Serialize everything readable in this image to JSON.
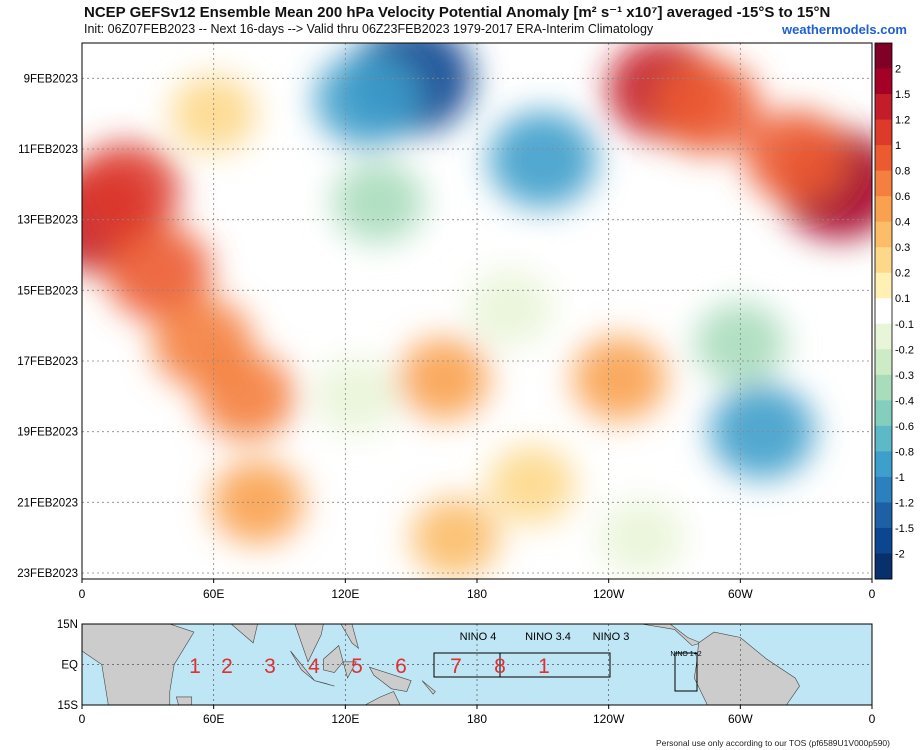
{
  "header": {
    "title": "NCEP GEFSv12 Ensemble Mean 200 hPa Velocity Potential Anomaly [m² s⁻¹ x10⁷] averaged -15°S to 15°N",
    "subtitle": "Init: 06Z07FEB2023 -- Next 16-days --> Valid thru 06Z23FEB2023 1979-2017 ERA-Interim Climatology",
    "brand": "weathermodels.com"
  },
  "footer": {
    "text": "Personal use only according to our TOS (pf6589U1V000p590)"
  },
  "colors": {
    "strong_negative": "#08519c",
    "negative": "#4eb3d3",
    "weak_negative": "#a8ddb5",
    "neutral": "#ffffff",
    "weak_positive": "#ffeda0",
    "positive": "#fd8d3c",
    "strong_positive": "#bd0026"
  },
  "chart_data": {
    "type": "heatmap",
    "title": "NCEP GEFSv12 Ensemble Mean 200 hPa Velocity Potential Anomaly [m² s⁻¹ x10⁷] averaged -15°S to 15°N",
    "xlabel": "",
    "ylabel": "",
    "x_ticks": [
      {
        "lon": 0,
        "label": "0"
      },
      {
        "lon": 60,
        "label": "60E"
      },
      {
        "lon": 120,
        "label": "120E"
      },
      {
        "lon": 180,
        "label": "180"
      },
      {
        "lon": 240,
        "label": "120W"
      },
      {
        "lon": 300,
        "label": "60W"
      },
      {
        "lon": 360,
        "label": "0"
      }
    ],
    "xlim": [
      0,
      360
    ],
    "y_start": "7FEB2023",
    "y_days_range": [
      1.0,
      16.0
    ],
    "y_ticks": [
      {
        "day": 2,
        "label": "9FEB2023"
      },
      {
        "day": 4,
        "label": "11FEB2023"
      },
      {
        "day": 6,
        "label": "13FEB2023"
      },
      {
        "day": 8,
        "label": "15FEB2023"
      },
      {
        "day": 10,
        "label": "17FEB2023"
      },
      {
        "day": 12,
        "label": "19FEB2023"
      },
      {
        "day": 14,
        "label": "21FEB2023"
      },
      {
        "day": 16,
        "label": "23FEB2023"
      }
    ],
    "grid": true,
    "colorbar": {
      "levels": [
        "2",
        "1.5",
        "1.2",
        "1",
        "0.8",
        "0.6",
        "0.4",
        "0.3",
        "0.2",
        "0.1",
        "-0.1",
        "-0.2",
        "-0.3",
        "-0.4",
        "-0.6",
        "-0.8",
        "-1",
        "-1.2",
        "-1.5",
        "-2"
      ],
      "colors": [
        "#800026",
        "#a50026",
        "#c41d2a",
        "#dd3a2c",
        "#ec5b30",
        "#f47f3e",
        "#f9a14f",
        "#fbbd68",
        "#fdd889",
        "#fff0b3",
        "#ffffff",
        "#e9f5d8",
        "#cdebc4",
        "#a9dcbb",
        "#84cebe",
        "#5db8c8",
        "#3d9fcb",
        "#2b80bd",
        "#1d60a6",
        "#0c4690",
        "#08306b"
      ]
    },
    "features": [
      {
        "lon": 5,
        "day": 6.0,
        "value": 1.3
      },
      {
        "lon": 20,
        "day": 5.2,
        "value": 1.0
      },
      {
        "lon": 35,
        "day": 7.5,
        "value": 0.9
      },
      {
        "lon": 55,
        "day": 9.5,
        "value": 0.7
      },
      {
        "lon": 75,
        "day": 11.0,
        "value": 0.6
      },
      {
        "lon": 80,
        "day": 14.0,
        "value": 0.45
      },
      {
        "lon": 60,
        "day": 3.0,
        "value": 0.2
      },
      {
        "lon": 150,
        "day": 2.0,
        "value": -1.6
      },
      {
        "lon": 130,
        "day": 2.6,
        "value": -0.9
      },
      {
        "lon": 135,
        "day": 5.5,
        "value": -0.4
      },
      {
        "lon": 125,
        "day": 11.0,
        "value": -0.2
      },
      {
        "lon": 210,
        "day": 4.3,
        "value": -1.0
      },
      {
        "lon": 265,
        "day": 2.3,
        "value": 1.2
      },
      {
        "lon": 285,
        "day": 2.8,
        "value": 0.9
      },
      {
        "lon": 345,
        "day": 5.0,
        "value": 1.5
      },
      {
        "lon": 325,
        "day": 4.2,
        "value": 0.8
      },
      {
        "lon": 310,
        "day": 12.0,
        "value": -0.9
      },
      {
        "lon": 300,
        "day": 9.5,
        "value": -0.4
      },
      {
        "lon": 245,
        "day": 10.5,
        "value": 0.5
      },
      {
        "lon": 165,
        "day": 10.5,
        "value": 0.4
      },
      {
        "lon": 205,
        "day": 13.5,
        "value": 0.25
      },
      {
        "lon": 170,
        "day": 15.0,
        "value": 0.3
      },
      {
        "lon": 195,
        "day": 8.5,
        "value": -0.2
      },
      {
        "lon": 255,
        "day": 15.0,
        "value": -0.2
      }
    ]
  },
  "map": {
    "lat_ticks": [
      "15N",
      "EQ",
      "15S"
    ],
    "x_ticks": [
      "0",
      "60E",
      "120E",
      "180",
      "120W",
      "60W",
      "0"
    ],
    "nino_labels": [
      "NINO 4",
      "NINO 3.4",
      "NINO 3",
      "NINO 1+2"
    ],
    "phase_numbers": [
      "1",
      "2",
      "3",
      "4",
      "5",
      "6",
      "7",
      "8",
      "1"
    ],
    "phase_color": "#e03030",
    "ocean_color": "#bfe6f5",
    "land_color": "#cccccc"
  }
}
